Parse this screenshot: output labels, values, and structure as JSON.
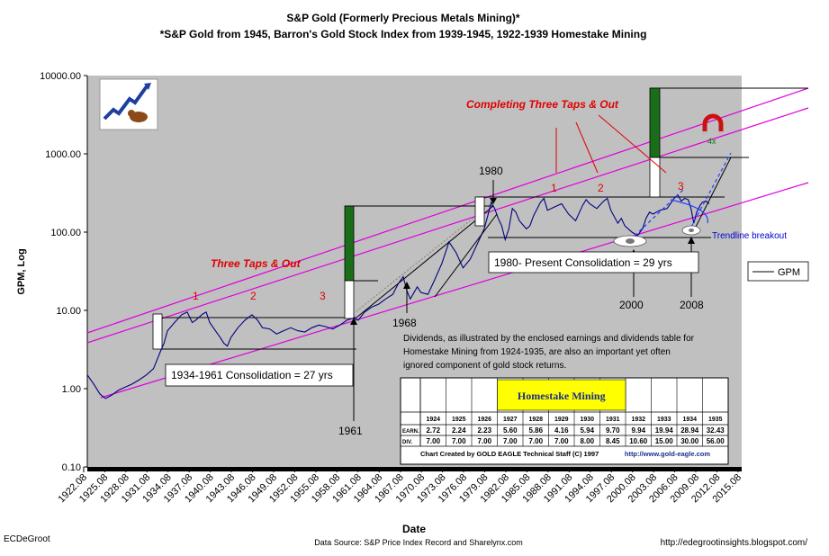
{
  "chart_data": {
    "type": "line",
    "title": "S&P Gold (Formerly Precious Metals Mining)*",
    "subtitle": "*S&P Gold from 1945, Barron's Gold Stock Index from 1939-1945, 1922-1939 Homestake Mining",
    "xlabel": "Date",
    "ylabel": "GPM, Log",
    "yscale": "log",
    "ylim": [
      0.1,
      10000
    ],
    "xlim": [
      1922.6,
      2015.6
    ],
    "y_ticks": [
      "0.10",
      "1.00",
      "10.00",
      "100.00",
      "1000.00",
      "10000.00"
    ],
    "x_ticks": [
      "1922.08",
      "1925.08",
      "1928.08",
      "1931.08",
      "1934.08",
      "1937.08",
      "1940.08",
      "1943.08",
      "1946.08",
      "1949.08",
      "1952.08",
      "1955.08",
      "1958.08",
      "1961.08",
      "1964.08",
      "1967.08",
      "1970.08",
      "1973.08",
      "1976.08",
      "1979.08",
      "1982.08",
      "1985.08",
      "1988.08",
      "1991.08",
      "1994.08",
      "1997.08",
      "2000.08",
      "2003.08",
      "2006.08",
      "2009.08",
      "2012.08",
      "2015.08"
    ],
    "legend": "right",
    "series": [
      {
        "name": "GPM",
        "color": "#000080",
        "points": [
          [
            1922.6,
            1.5
          ],
          [
            1923.5,
            1.15
          ],
          [
            1924.4,
            0.85
          ],
          [
            1925.2,
            0.75
          ],
          [
            1926.0,
            0.82
          ],
          [
            1927.0,
            0.95
          ],
          [
            1928.0,
            1.05
          ],
          [
            1929.0,
            1.15
          ],
          [
            1930.0,
            1.3
          ],
          [
            1931.0,
            1.5
          ],
          [
            1932.0,
            1.8
          ],
          [
            1933.0,
            3.0
          ],
          [
            1933.5,
            3.8
          ],
          [
            1934.0,
            5.5
          ],
          [
            1935.0,
            7.0
          ],
          [
            1936.0,
            8.8
          ],
          [
            1936.8,
            9.5
          ],
          [
            1937.5,
            7.0
          ],
          [
            1938.0,
            7.5
          ],
          [
            1939.0,
            9.0
          ],
          [
            1939.5,
            9.5
          ],
          [
            1940.0,
            7.0
          ],
          [
            1940.8,
            5.5
          ],
          [
            1941.5,
            4.5
          ],
          [
            1942.0,
            3.8
          ],
          [
            1942.5,
            3.5
          ],
          [
            1943.0,
            4.5
          ],
          [
            1944.0,
            6.0
          ],
          [
            1945.0,
            7.5
          ],
          [
            1946.0,
            8.8
          ],
          [
            1946.8,
            7.5
          ],
          [
            1947.5,
            6.0
          ],
          [
            1948.5,
            5.8
          ],
          [
            1949.5,
            5.0
          ],
          [
            1950.5,
            5.5
          ],
          [
            1951.5,
            6.0
          ],
          [
            1952.5,
            5.5
          ],
          [
            1953.5,
            5.3
          ],
          [
            1954.5,
            6.0
          ],
          [
            1955.5,
            6.5
          ],
          [
            1956.5,
            6.2
          ],
          [
            1957.5,
            5.8
          ],
          [
            1958.5,
            6.5
          ],
          [
            1959.5,
            7.5
          ],
          [
            1960.5,
            8.0
          ],
          [
            1961.1,
            7.5
          ],
          [
            1962.0,
            9.5
          ],
          [
            1963.0,
            11.0
          ],
          [
            1964.0,
            12.0
          ],
          [
            1965.0,
            14.0
          ],
          [
            1966.0,
            16.0
          ],
          [
            1966.8,
            22.0
          ],
          [
            1967.5,
            27.0
          ],
          [
            1968.0,
            18.0
          ],
          [
            1968.5,
            14.0
          ],
          [
            1969.5,
            20.0
          ],
          [
            1970.0,
            17.0
          ],
          [
            1971.0,
            16.0
          ],
          [
            1972.0,
            25.0
          ],
          [
            1973.0,
            40.0
          ],
          [
            1974.0,
            75.0
          ],
          [
            1975.0,
            55.0
          ],
          [
            1976.0,
            35.0
          ],
          [
            1977.0,
            45.0
          ],
          [
            1978.0,
            70.0
          ],
          [
            1979.0,
            110.0
          ],
          [
            1979.5,
            160.0
          ],
          [
            1980.0,
            240.0
          ],
          [
            1980.5,
            200.0
          ],
          [
            1981.0,
            150.0
          ],
          [
            1981.5,
            120.0
          ],
          [
            1982.0,
            80.0
          ],
          [
            1982.5,
            110.0
          ],
          [
            1983.0,
            200.0
          ],
          [
            1983.5,
            180.0
          ],
          [
            1984.0,
            140.0
          ],
          [
            1985.0,
            110.0
          ],
          [
            1985.5,
            120.0
          ],
          [
            1986.0,
            160.0
          ],
          [
            1987.0,
            240.0
          ],
          [
            1987.5,
            270.0
          ],
          [
            1988.0,
            190.0
          ],
          [
            1989.0,
            210.0
          ],
          [
            1990.0,
            230.0
          ],
          [
            1991.0,
            170.0
          ],
          [
            1992.0,
            140.0
          ],
          [
            1993.0,
            220.0
          ],
          [
            1993.5,
            260.0
          ],
          [
            1994.0,
            230.0
          ],
          [
            1995.0,
            200.0
          ],
          [
            1996.0,
            250.0
          ],
          [
            1996.5,
            270.0
          ],
          [
            1997.0,
            190.0
          ],
          [
            1998.0,
            130.0
          ],
          [
            1998.5,
            150.0
          ],
          [
            1999.0,
            120.0
          ],
          [
            2000.0,
            100.0
          ],
          [
            2000.8,
            90.0
          ],
          [
            2001.5,
            110.0
          ],
          [
            2002.0,
            150.0
          ],
          [
            2002.5,
            180.0
          ],
          [
            2003.0,
            170.0
          ],
          [
            2004.0,
            190.0
          ],
          [
            2005.0,
            200.0
          ],
          [
            2006.0,
            270.0
          ],
          [
            2006.5,
            300.0
          ],
          [
            2007.0,
            250.0
          ],
          [
            2007.5,
            270.0
          ],
          [
            2008.0,
            260.0
          ],
          [
            2008.4,
            200.0
          ],
          [
            2008.8,
            130.0
          ],
          [
            2009.2,
            180.0
          ],
          [
            2009.7,
            220.0
          ],
          [
            2010.0,
            240.0
          ],
          [
            2010.5,
            250.0
          ],
          [
            2011.0,
            230.0
          ]
        ]
      }
    ],
    "annotations": [
      {
        "text": "Completing Three Taps & Out",
        "color": "#e00000"
      },
      {
        "text": "Three Taps & Out",
        "color": "#e00000"
      },
      {
        "text": "1",
        "color": "#e00000"
      },
      {
        "text": "2",
        "color": "#e00000"
      },
      {
        "text": "3",
        "color": "#e00000"
      },
      {
        "text": "1",
        "color": "#e00000"
      },
      {
        "text": "2",
        "color": "#e00000"
      },
      {
        "text": "3",
        "color": "#e00000"
      },
      {
        "text": "1980",
        "color": "#000000"
      },
      {
        "text": "1968",
        "color": "#000000"
      },
      {
        "text": "1961",
        "color": "#000000"
      },
      {
        "text": "2000",
        "color": "#000000"
      },
      {
        "text": "2008",
        "color": "#000000"
      },
      {
        "text": "Trendline breakout",
        "color": "#0000cc"
      },
      {
        "text": "4x",
        "color": "#008000"
      }
    ],
    "consolidation_boxes": [
      "1934-1961 Consolidation = 27 yrs",
      "1980- Present  Consolidation = 29 yrs"
    ],
    "dividends_note": "Dividends, as illustrated by the enclosed earnings and dividends table for Homestake Mining from 1924-1935, are also an important yet often ignored component of gold stock returns.",
    "table": {
      "title": "Homestake Mining",
      "years": [
        "1924",
        "1925",
        "1926",
        "1927",
        "1928",
        "1929",
        "1930",
        "1931",
        "1932",
        "1933",
        "1934",
        "1935"
      ],
      "rows": [
        {
          "label": "EARN.",
          "values": [
            "2.72",
            "2.24",
            "2.23",
            "5.60",
            "5.86",
            "4.16",
            "5.94",
            "9.70",
            "9.94",
            "19.94",
            "28.94",
            "32.43"
          ]
        },
        {
          "label": "DIV.",
          "values": [
            "7.00",
            "7.00",
            "7.00",
            "7.00",
            "7.00",
            "7.00",
            "8.00",
            "8.45",
            "10.60",
            "15.00",
            "30.00",
            "56.00"
          ]
        }
      ],
      "footer_left": "Chart Created by GOLD EAGLE Technical Staff (C) 1997",
      "footer_right": "http://www.gold-eagle.com"
    }
  },
  "footer": {
    "author": "ECDeGroot",
    "source": "Data Source: S&P Price Index Record and Sharelynx.com",
    "url": "http://edegrootinsights.blogspot.com/"
  },
  "colors": {
    "plot_bg": "#c0c0c0",
    "channel": "#e000e0",
    "series": "#000080",
    "bar_green": "#1a6e1a",
    "text_red": "#e00000",
    "table_yellow": "#ffff00"
  }
}
